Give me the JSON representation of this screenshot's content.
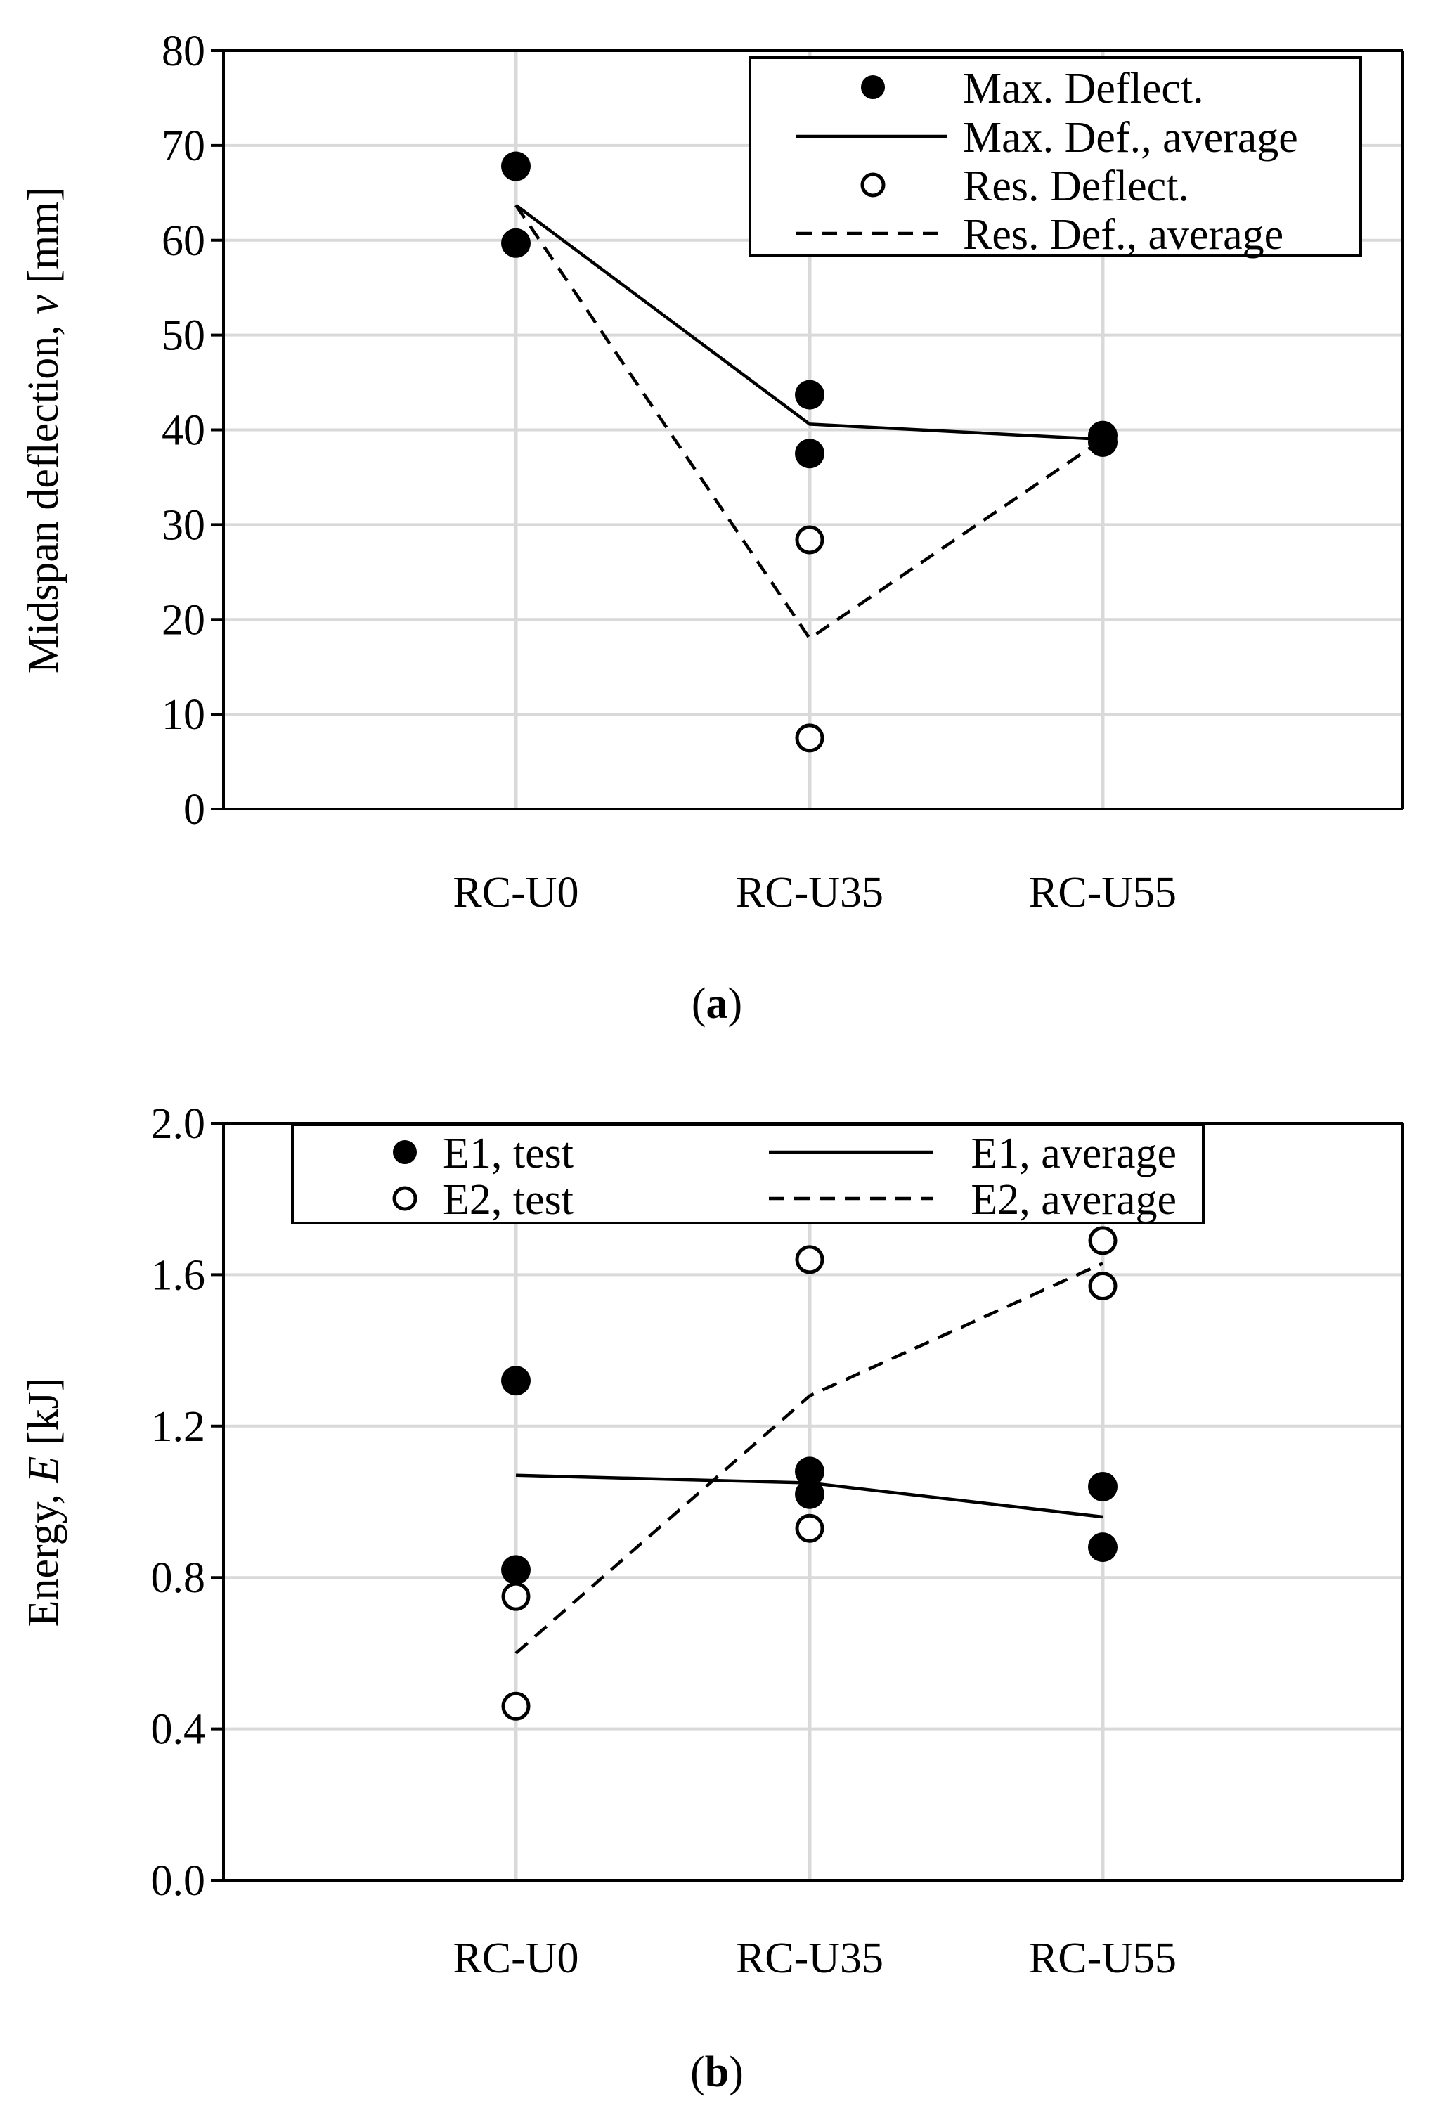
{
  "chart_data": [
    {
      "type": "scatter",
      "panel_label": "a",
      "title": "",
      "xlabel": "",
      "ylabel": {
        "prefix": "Midspan deflection, ",
        "var": "v",
        "suffix": " [mm]"
      },
      "categories": [
        "RC-U0",
        "RC-U35",
        "RC-U55"
      ],
      "ylim": [
        0,
        80
      ],
      "yticks": [
        0,
        10,
        20,
        30,
        40,
        50,
        60,
        70,
        80
      ],
      "ytick_labels": [
        "0",
        "10",
        "20",
        "30",
        "40",
        "50",
        "60",
        "70",
        "80"
      ],
      "grid": true,
      "legend": {
        "placement": "top-right",
        "layout": "single-column"
      },
      "series": [
        {
          "name": "Max. Deflect.",
          "kind": "points",
          "marker": "filled",
          "x": [
            "RC-U0",
            "RC-U0",
            "RC-U35",
            "RC-U35",
            "RC-U55",
            "RC-U55"
          ],
          "y": [
            67.8,
            59.7,
            43.7,
            37.5,
            39.4,
            38.7
          ]
        },
        {
          "name": "Max. Def., average",
          "kind": "line",
          "style": "solid",
          "x": [
            "RC-U0",
            "RC-U35",
            "RC-U55"
          ],
          "y": [
            63.7,
            40.6,
            39.0
          ]
        },
        {
          "name": "Res. Deflect.",
          "kind": "points",
          "marker": "open",
          "x": [
            "RC-U35",
            "RC-U35"
          ],
          "y": [
            28.4,
            7.5
          ]
        },
        {
          "name": "Res. Def., average",
          "kind": "line",
          "style": "dashed",
          "x": [
            "RC-U0",
            "RC-U35",
            "RC-U55"
          ],
          "y": [
            63.7,
            18.0,
            39.0
          ]
        }
      ]
    },
    {
      "type": "scatter",
      "panel_label": "b",
      "title": "",
      "xlabel": "",
      "ylabel": {
        "prefix": "Energy, ",
        "var": "E",
        "suffix": " [kJ]"
      },
      "categories": [
        "RC-U0",
        "RC-U35",
        "RC-U55"
      ],
      "ylim": [
        0,
        2.0
      ],
      "yticks": [
        0,
        0.4,
        0.8,
        1.2,
        1.6,
        2.0
      ],
      "ytick_labels": [
        "0.0",
        "0.4",
        "0.8",
        "1.2",
        "1.6",
        "2.0"
      ],
      "grid": true,
      "legend": {
        "placement": "top",
        "layout": "two-column"
      },
      "series": [
        {
          "name": "E1, test",
          "kind": "points",
          "marker": "filled",
          "x": [
            "RC-U0",
            "RC-U0",
            "RC-U35",
            "RC-U35",
            "RC-U55",
            "RC-U55"
          ],
          "y": [
            1.32,
            0.82,
            1.08,
            1.02,
            1.04,
            0.88
          ]
        },
        {
          "name": "E2, test",
          "kind": "points",
          "marker": "open",
          "x": [
            "RC-U0",
            "RC-U0",
            "RC-U35",
            "RC-U35",
            "RC-U55",
            "RC-U55"
          ],
          "y": [
            0.75,
            0.46,
            1.64,
            0.93,
            1.69,
            1.57
          ]
        },
        {
          "name": "E1, average",
          "kind": "line",
          "style": "solid",
          "x": [
            "RC-U0",
            "RC-U35",
            "RC-U55"
          ],
          "y": [
            1.07,
            1.05,
            0.96
          ]
        },
        {
          "name": "E2, average",
          "kind": "line",
          "style": "dashed",
          "x": [
            "RC-U0",
            "RC-U35",
            "RC-U55"
          ],
          "y": [
            0.6,
            1.28,
            1.63
          ]
        }
      ]
    }
  ]
}
